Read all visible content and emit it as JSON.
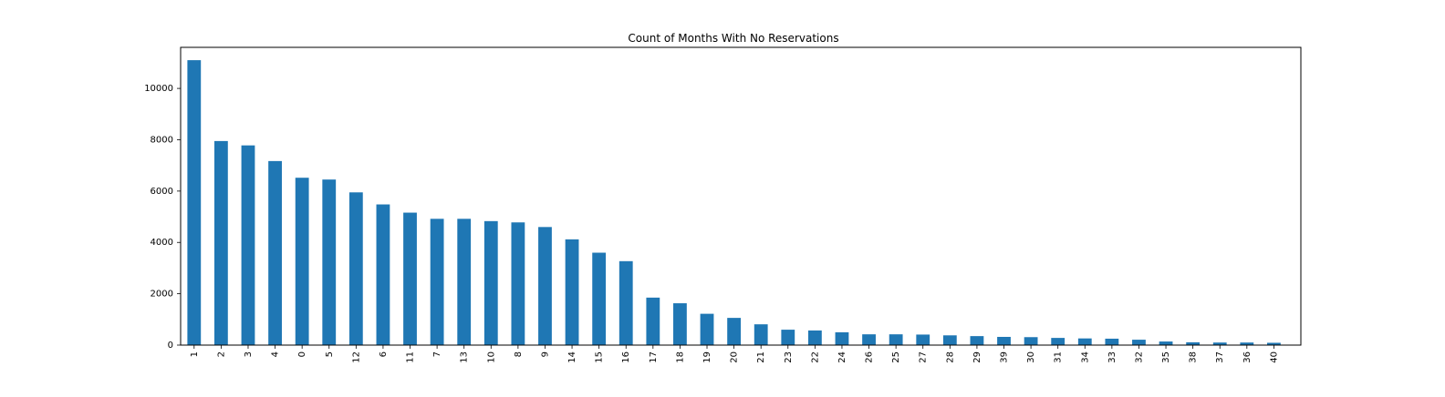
{
  "chart_data": {
    "type": "bar",
    "title": "Count of Months With No Reservations",
    "xlabel": "",
    "ylabel": "",
    "categories": [
      "1",
      "2",
      "3",
      "4",
      "0",
      "5",
      "12",
      "6",
      "11",
      "7",
      "13",
      "10",
      "8",
      "9",
      "14",
      "15",
      "16",
      "17",
      "18",
      "19",
      "20",
      "21",
      "23",
      "22",
      "24",
      "26",
      "25",
      "27",
      "28",
      "29",
      "39",
      "30",
      "31",
      "34",
      "33",
      "32",
      "35",
      "38",
      "37",
      "36",
      "40"
    ],
    "values": [
      11100,
      7950,
      7780,
      7170,
      6520,
      6450,
      5950,
      5480,
      5160,
      4920,
      4920,
      4830,
      4780,
      4600,
      4120,
      3600,
      3270,
      1850,
      1630,
      1220,
      1060,
      810,
      600,
      570,
      500,
      420,
      420,
      410,
      380,
      350,
      320,
      310,
      280,
      260,
      250,
      210,
      140,
      110,
      100,
      100,
      90
    ],
    "ylim": [
      0,
      11600
    ],
    "yticks": [
      0,
      2000,
      4000,
      6000,
      8000,
      10000
    ],
    "grid": false,
    "legend": "none",
    "bar_color": "#1f77b4"
  }
}
